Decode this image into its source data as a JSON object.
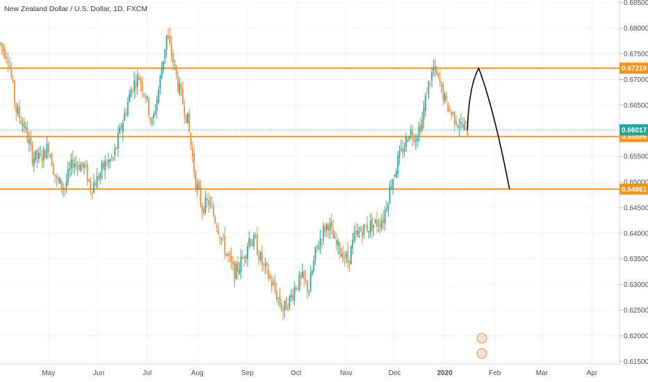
{
  "header": {
    "title": "New Zealand Dollar / U.S. Dollar, 1D, FXCM"
  },
  "colors": {
    "bull": "#26a69a",
    "bear": "#ef8a3a",
    "level_line": "#f7931a",
    "current_line": "#26a69a",
    "projection": "#000000",
    "grid": "#f0f3fa",
    "axis_text": "#4a4a4a"
  },
  "chart_data": {
    "type": "candlestick",
    "title": "New Zealand Dollar / U.S. Dollar, 1D, FXCM",
    "xlabel": "",
    "ylabel": "",
    "ylim": [
      0.6145,
      0.6855
    ],
    "y_ticks": [
      "0.61500",
      "0.62000",
      "0.62500",
      "0.63000",
      "0.63500",
      "0.64000",
      "0.64500",
      "0.65000",
      "0.65500",
      "0.66000",
      "0.66500",
      "0.67000",
      "0.67500",
      "0.68000",
      "0.68500"
    ],
    "x_ticks": [
      {
        "label": "May",
        "day": 30
      },
      {
        "label": "Jun",
        "day": 61
      },
      {
        "label": "Jul",
        "day": 91
      },
      {
        "label": "Aug",
        "day": 122
      },
      {
        "label": "Sep",
        "day": 153
      },
      {
        "label": "Oct",
        "day": 183
      },
      {
        "label": "Nov",
        "day": 214
      },
      {
        "label": "Dec",
        "day": 244
      },
      {
        "label": "2020",
        "day": 275
      },
      {
        "label": "Feb",
        "day": 306
      },
      {
        "label": "Mar",
        "day": 335
      },
      {
        "label": "Apr",
        "day": 366
      }
    ],
    "x_range_days": [
      0,
      383
    ],
    "price_waypoints": [
      [
        0,
        0.677
      ],
      [
        5,
        0.6745
      ],
      [
        10,
        0.664
      ],
      [
        15,
        0.661
      ],
      [
        20,
        0.655
      ],
      [
        25,
        0.6545
      ],
      [
        30,
        0.657
      ],
      [
        35,
        0.65
      ],
      [
        40,
        0.649
      ],
      [
        45,
        0.654
      ],
      [
        52,
        0.653
      ],
      [
        56,
        0.649
      ],
      [
        60,
        0.6505
      ],
      [
        65,
        0.6535
      ],
      [
        70,
        0.6545
      ],
      [
        76,
        0.662
      ],
      [
        82,
        0.669
      ],
      [
        86,
        0.6705
      ],
      [
        90,
        0.667
      ],
      [
        94,
        0.661
      ],
      [
        98,
        0.668
      ],
      [
        103,
        0.6785
      ],
      [
        106,
        0.675
      ],
      [
        110,
        0.669
      ],
      [
        116,
        0.662
      ],
      [
        121,
        0.65
      ],
      [
        125,
        0.645
      ],
      [
        129,
        0.646
      ],
      [
        134,
        0.642
      ],
      [
        140,
        0.636
      ],
      [
        145,
        0.632
      ],
      [
        150,
        0.635
      ],
      [
        154,
        0.639
      ],
      [
        158,
        0.638
      ],
      [
        162,
        0.634
      ],
      [
        167,
        0.631
      ],
      [
        171,
        0.628
      ],
      [
        175,
        0.625
      ],
      [
        179,
        0.627
      ],
      [
        183,
        0.63
      ],
      [
        187,
        0.631
      ],
      [
        191,
        0.629
      ],
      [
        195,
        0.636
      ],
      [
        199,
        0.64
      ],
      [
        203,
        0.642
      ],
      [
        207,
        0.638
      ],
      [
        212,
        0.636
      ],
      [
        215,
        0.6345
      ],
      [
        219,
        0.639
      ],
      [
        223,
        0.6405
      ],
      [
        229,
        0.6415
      ],
      [
        233,
        0.642
      ],
      [
        237,
        0.643
      ],
      [
        242,
        0.65
      ],
      [
        246,
        0.654
      ],
      [
        250,
        0.657
      ],
      [
        253,
        0.66
      ],
      [
        257,
        0.659
      ],
      [
        261,
        0.662
      ],
      [
        264,
        0.668
      ],
      [
        268,
        0.672
      ],
      [
        272,
        0.669
      ],
      [
        276,
        0.665
      ],
      [
        280,
        0.663
      ],
      [
        285,
        0.661
      ],
      [
        289,
        0.6601
      ]
    ],
    "horizontal_levels": [
      {
        "label": "0.67219",
        "value": 0.67219
      },
      {
        "label": "0.65886",
        "value": 0.65886
      },
      {
        "label": "0.64861",
        "value": 0.64861
      }
    ],
    "current_price": {
      "label": "0.66017",
      "value": 0.66017
    },
    "projection_path": [
      {
        "day": 289,
        "value": 0.6601
      },
      {
        "day": 296,
        "value": 0.67219
      },
      {
        "day": 315,
        "value": 0.64861
      }
    ],
    "grid": true,
    "legend": "none"
  }
}
